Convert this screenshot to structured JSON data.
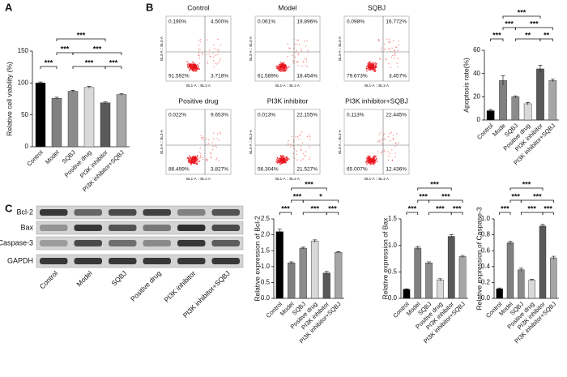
{
  "panel_labels": [
    "A",
    "B",
    "C"
  ],
  "flow": {
    "y_axis_label": "BL3-A :: BL3-A",
    "x_axis_label": "BL1-A :: BL1-A",
    "panels": [
      {
        "title": "Control",
        "quadrants": [
          "0.190%",
          "4.500%",
          "91.592%",
          "3.718%"
        ]
      },
      {
        "title": "Model",
        "quadrants": [
          "0.061%",
          "19.896%",
          "61.589%",
          "18.454%"
        ]
      },
      {
        "title": "SQBJ",
        "quadrants": [
          "0.098%",
          "16.772%",
          "79.673%",
          "3.457%"
        ]
      },
      {
        "title": "Positive drug",
        "quadrants": [
          "0.022%",
          "9.653%",
          "86.499%",
          "3.827%"
        ]
      },
      {
        "title": "PI3K inhibitor",
        "quadrants": [
          "0.013%",
          "22.155%",
          "56.304%",
          "21.527%"
        ]
      },
      {
        "title": "PI3K inhibitor+SQBJ",
        "quadrants": [
          "0.113%",
          "22.445%",
          "65.007%",
          "12.436%"
        ]
      }
    ]
  },
  "blot": {
    "rows": [
      "Bcl-2",
      "Bax",
      "Caspase-3",
      "GAPDH"
    ],
    "categories": [
      "Control",
      "Model",
      "SQBJ",
      "Positive drug",
      "PI3K inhibitor",
      "PI3K inhibitor+SQBJ"
    ]
  },
  "chart_data": [
    {
      "type": "bar",
      "y_label": "Relative cell viability (%)",
      "categories": [
        "Control",
        "Model",
        "SQBJ",
        "Positive drug",
        "PI3K inhibitor",
        "PI3K inhibitor+SQBJ"
      ],
      "values": [
        100,
        76,
        87,
        93,
        69,
        82
      ],
      "errors": [
        1.5,
        1.5,
        1.5,
        1.5,
        1.5,
        1.5
      ],
      "colors": [
        "#000000",
        "#808080",
        "#8c8c8c",
        "#d9d9d9",
        "#595959",
        "#a6a6a6"
      ],
      "ylim": [
        0,
        150
      ],
      "yticks": [
        0,
        50,
        100,
        150
      ],
      "significance": [
        "***",
        "***",
        "***",
        "***",
        "***",
        "***"
      ]
    },
    {
      "type": "bar",
      "y_label": "Apoptosis rate(%)",
      "categories": [
        "Control",
        "Mode",
        "SQBJ",
        "Positive drug",
        "PI3K inhibitor",
        "PI3K inhibitor+SQBJ"
      ],
      "values": [
        8,
        34,
        20,
        14,
        44,
        34
      ],
      "errors": [
        1,
        4,
        0.8,
        1,
        3,
        1.2
      ],
      "colors": [
        "#000000",
        "#808080",
        "#8c8c8c",
        "#d9d9d9",
        "#595959",
        "#a6a6a6"
      ],
      "ylim": [
        0,
        60
      ],
      "yticks": [
        0,
        20,
        40,
        60
      ],
      "significance": [
        "***",
        "***",
        "***",
        "**",
        "***",
        "**"
      ]
    },
    {
      "type": "bar",
      "y_label": "Relative expression of Bcl-2",
      "categories": [
        "Control",
        "Model",
        "SQBJ",
        "Positive drug",
        "PI3K inhibitor",
        "PI3K inhibitor+SQBJ"
      ],
      "values": [
        2.1,
        1.12,
        1.58,
        1.8,
        0.8,
        1.45
      ],
      "errors": [
        0.08,
        0.03,
        0.03,
        0.04,
        0.05,
        0.02
      ],
      "colors": [
        "#000000",
        "#808080",
        "#8c8c8c",
        "#d9d9d9",
        "#595959",
        "#a6a6a6"
      ],
      "ylim": [
        0,
        2.5
      ],
      "yticks": [
        {
          "value": 0,
          "label": "0.0"
        },
        0.5,
        {
          "value": 1,
          "label": "1.0"
        },
        1.5,
        {
          "value": 2,
          "label": "2.0"
        },
        2.5
      ],
      "significance": [
        "***",
        "***",
        "***",
        "***",
        "*",
        "***"
      ]
    },
    {
      "type": "bar",
      "y_label": "Relative expression of Bax",
      "categories": [
        "Control",
        "Model",
        "SQBJ",
        "Positive drug",
        "PI3K inhibitor",
        "PI3K inhibitor+SQBJ"
      ],
      "values": [
        0.17,
        0.95,
        0.67,
        0.35,
        1.17,
        0.79
      ],
      "errors": [
        0.01,
        0.03,
        0.02,
        0.02,
        0.03,
        0.02
      ],
      "colors": [
        "#000000",
        "#808080",
        "#8c8c8c",
        "#d9d9d9",
        "#595959",
        "#a6a6a6"
      ],
      "ylim": [
        0,
        1.5
      ],
      "yticks": [
        {
          "value": 0,
          "label": "0.0"
        },
        0.5,
        {
          "value": 1,
          "label": "1.0"
        },
        1.5
      ],
      "significance": [
        "***",
        "***",
        "***",
        "***",
        "***",
        "***"
      ]
    },
    {
      "type": "bar",
      "y_label": "Relative expression of Caspase-3",
      "categories": [
        "Control",
        "Model",
        "SQBJ",
        "Positive drug",
        "PI3K inhibitor",
        "PI3K inhibitor+SQBJ"
      ],
      "values": [
        0.12,
        0.7,
        0.36,
        0.23,
        0.91,
        0.51
      ],
      "errors": [
        0.01,
        0.02,
        0.02,
        0.01,
        0.02,
        0.02
      ],
      "colors": [
        "#000000",
        "#808080",
        "#8c8c8c",
        "#d9d9d9",
        "#595959",
        "#a6a6a6"
      ],
      "ylim": [
        0,
        1
      ],
      "yticks": [
        {
          "value": 0,
          "label": "0.0"
        },
        0.2,
        0.4,
        0.6,
        0.8,
        {
          "value": 1,
          "label": "1.0"
        }
      ],
      "significance": [
        "***",
        "***",
        "***",
        "***",
        "***",
        "***"
      ]
    }
  ]
}
